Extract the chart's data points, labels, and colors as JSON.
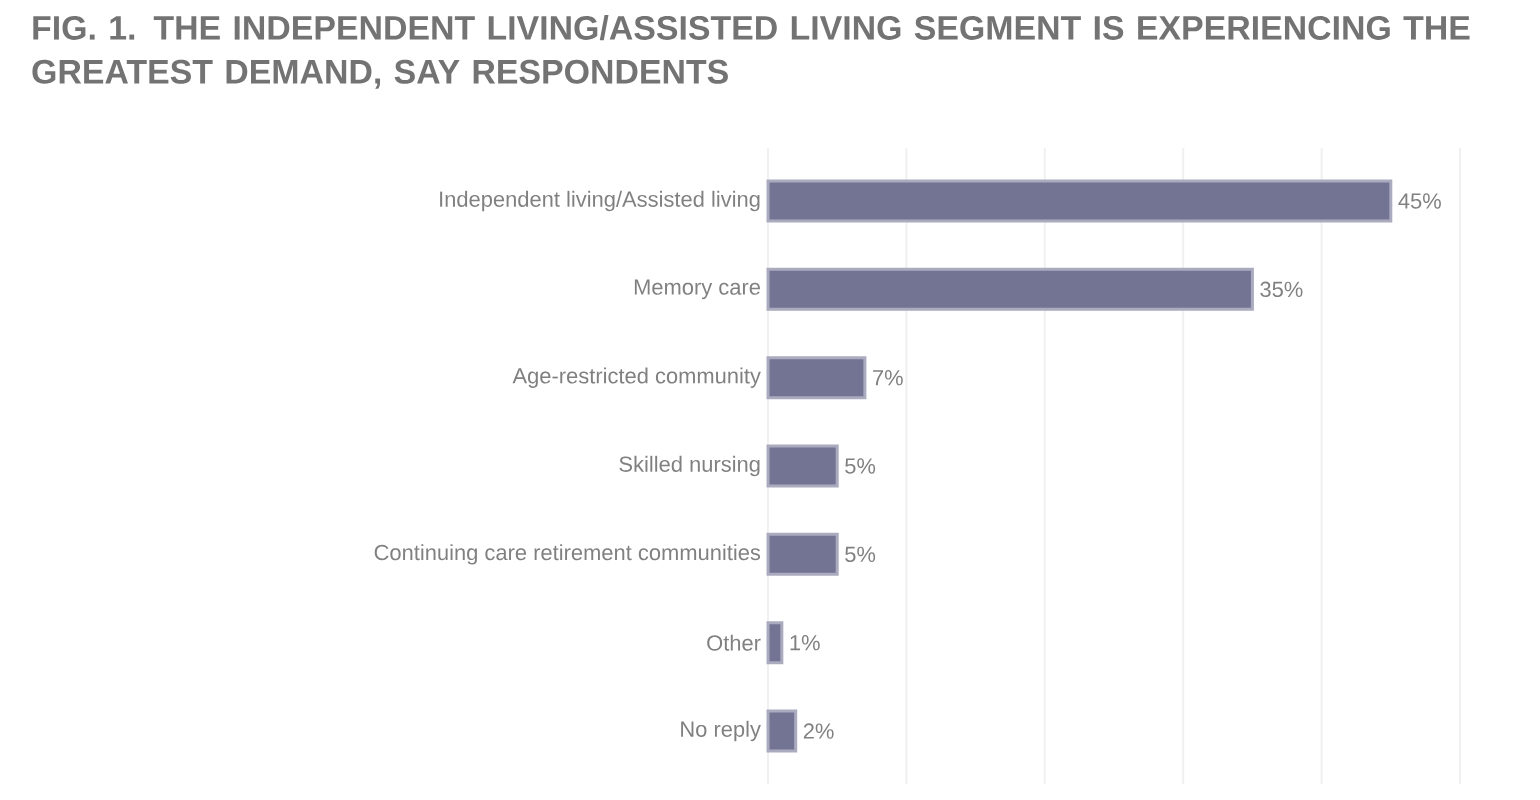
{
  "chart_data": {
    "type": "bar",
    "orientation": "horizontal",
    "title": "FIG. 1. THE INDEPENDENT LIVING/ASSISTED LIVING SEGMENT IS EXPERIENCING THE GREATEST DEMAND, SAY RESPONDENTS",
    "categories": [
      "Independent living/Assisted living",
      "Memory care",
      "Age-restricted community",
      "Skilled nursing",
      "Continuing care retirement communities",
      "Other",
      "No reply"
    ],
    "values": [
      45,
      35,
      7,
      5,
      5,
      1,
      2
    ],
    "color": "#737394",
    "xlim": [
      0,
      50
    ],
    "xticks": [
      {
        "value": 0,
        "label": null
      },
      {
        "value": 10,
        "label": null
      },
      {
        "value": 20,
        "label": null
      },
      {
        "value": 30,
        "label": null
      },
      {
        "value": 40,
        "label": null
      },
      {
        "value": 50,
        "label": null
      }
    ],
    "grid": "x",
    "tick_labels": "y",
    "data_labels": true,
    "value_labels": [
      "45%",
      "35%",
      "7%",
      "5%",
      "5%",
      "1%",
      "2%"
    ]
  }
}
